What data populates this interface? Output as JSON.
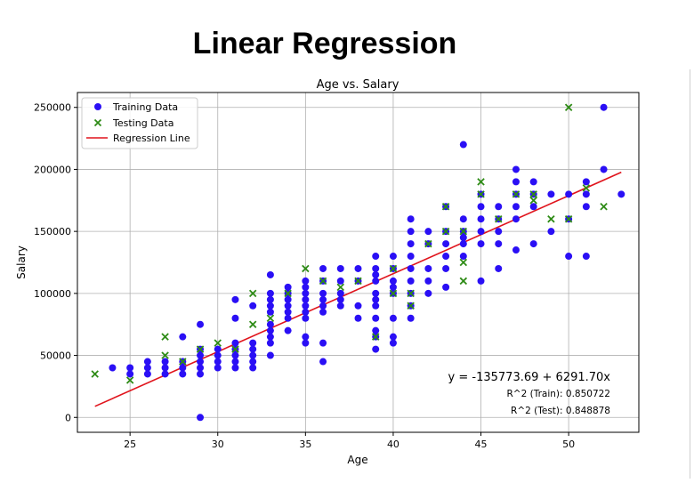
{
  "page": {
    "heading": "Linear Regression"
  },
  "chart_data": {
    "type": "scatter",
    "title": "Age vs. Salary",
    "xlabel": "Age",
    "ylabel": "Salary",
    "xlim": [
      22,
      54
    ],
    "ylim": [
      -12000,
      262000
    ],
    "xticks": [
      25,
      30,
      35,
      40,
      45,
      50
    ],
    "yticks": [
      0,
      50000,
      100000,
      150000,
      200000,
      250000
    ],
    "grid": true,
    "legend_position": "upper-left",
    "legend": [
      {
        "label": "Training Data",
        "marker": "circle",
        "color": "#2a0ff5"
      },
      {
        "label": "Testing Data",
        "marker": "x",
        "color": "#2e8b16"
      },
      {
        "label": "Regression Line",
        "marker": "line",
        "color": "#e0141c"
      }
    ],
    "series": [
      {
        "name": "Training Data",
        "marker": "circle",
        "color": "#2a0ff5",
        "points": [
          [
            24,
            40000
          ],
          [
            25,
            35000
          ],
          [
            25,
            40000
          ],
          [
            26,
            35000
          ],
          [
            26,
            40000
          ],
          [
            26,
            45000
          ],
          [
            27,
            35000
          ],
          [
            27,
            40000
          ],
          [
            27,
            45000
          ],
          [
            28,
            35000
          ],
          [
            28,
            40000
          ],
          [
            28,
            45000
          ],
          [
            28,
            65000
          ],
          [
            29,
            0
          ],
          [
            29,
            35000
          ],
          [
            29,
            40000
          ],
          [
            29,
            45000
          ],
          [
            29,
            50000
          ],
          [
            29,
            55000
          ],
          [
            29,
            75000
          ],
          [
            30,
            40000
          ],
          [
            30,
            45000
          ],
          [
            30,
            50000
          ],
          [
            30,
            55000
          ],
          [
            31,
            40000
          ],
          [
            31,
            45000
          ],
          [
            31,
            50000
          ],
          [
            31,
            55000
          ],
          [
            31,
            60000
          ],
          [
            31,
            80000
          ],
          [
            31,
            95000
          ],
          [
            32,
            40000
          ],
          [
            32,
            45000
          ],
          [
            32,
            50000
          ],
          [
            32,
            55000
          ],
          [
            32,
            60000
          ],
          [
            32,
            90000
          ],
          [
            33,
            50000
          ],
          [
            33,
            60000
          ],
          [
            33,
            65000
          ],
          [
            33,
            70000
          ],
          [
            33,
            75000
          ],
          [
            33,
            85000
          ],
          [
            33,
            90000
          ],
          [
            33,
            95000
          ],
          [
            33,
            100000
          ],
          [
            33,
            115000
          ],
          [
            34,
            70000
          ],
          [
            34,
            80000
          ],
          [
            34,
            85000
          ],
          [
            34,
            90000
          ],
          [
            34,
            95000
          ],
          [
            34,
            100000
          ],
          [
            34,
            105000
          ],
          [
            35,
            60000
          ],
          [
            35,
            65000
          ],
          [
            35,
            80000
          ],
          [
            35,
            85000
          ],
          [
            35,
            90000
          ],
          [
            35,
            95000
          ],
          [
            35,
            100000
          ],
          [
            35,
            105000
          ],
          [
            35,
            110000
          ],
          [
            36,
            45000
          ],
          [
            36,
            60000
          ],
          [
            36,
            85000
          ],
          [
            36,
            90000
          ],
          [
            36,
            95000
          ],
          [
            36,
            100000
          ],
          [
            36,
            110000
          ],
          [
            36,
            120000
          ],
          [
            37,
            90000
          ],
          [
            37,
            95000
          ],
          [
            37,
            100000
          ],
          [
            37,
            110000
          ],
          [
            37,
            120000
          ],
          [
            38,
            80000
          ],
          [
            38,
            90000
          ],
          [
            38,
            110000
          ],
          [
            38,
            120000
          ],
          [
            39,
            55000
          ],
          [
            39,
            65000
          ],
          [
            39,
            70000
          ],
          [
            39,
            80000
          ],
          [
            39,
            90000
          ],
          [
            39,
            95000
          ],
          [
            39,
            100000
          ],
          [
            39,
            110000
          ],
          [
            39,
            115000
          ],
          [
            39,
            120000
          ],
          [
            39,
            130000
          ],
          [
            40,
            60000
          ],
          [
            40,
            65000
          ],
          [
            40,
            80000
          ],
          [
            40,
            100000
          ],
          [
            40,
            105000
          ],
          [
            40,
            110000
          ],
          [
            40,
            120000
          ],
          [
            40,
            130000
          ],
          [
            41,
            80000
          ],
          [
            41,
            90000
          ],
          [
            41,
            100000
          ],
          [
            41,
            110000
          ],
          [
            41,
            120000
          ],
          [
            41,
            130000
          ],
          [
            41,
            140000
          ],
          [
            41,
            150000
          ],
          [
            41,
            160000
          ],
          [
            42,
            100000
          ],
          [
            42,
            110000
          ],
          [
            42,
            120000
          ],
          [
            42,
            140000
          ],
          [
            42,
            150000
          ],
          [
            43,
            105000
          ],
          [
            43,
            120000
          ],
          [
            43,
            130000
          ],
          [
            43,
            140000
          ],
          [
            43,
            150000
          ],
          [
            43,
            170000
          ],
          [
            44,
            130000
          ],
          [
            44,
            140000
          ],
          [
            44,
            145000
          ],
          [
            44,
            150000
          ],
          [
            44,
            160000
          ],
          [
            44,
            220000
          ],
          [
            45,
            110000
          ],
          [
            45,
            140000
          ],
          [
            45,
            150000
          ],
          [
            45,
            160000
          ],
          [
            45,
            170000
          ],
          [
            45,
            180000
          ],
          [
            46,
            120000
          ],
          [
            46,
            140000
          ],
          [
            46,
            150000
          ],
          [
            46,
            160000
          ],
          [
            46,
            170000
          ],
          [
            47,
            135000
          ],
          [
            47,
            160000
          ],
          [
            47,
            170000
          ],
          [
            47,
            180000
          ],
          [
            47,
            190000
          ],
          [
            47,
            200000
          ],
          [
            48,
            140000
          ],
          [
            48,
            170000
          ],
          [
            48,
            180000
          ],
          [
            48,
            190000
          ],
          [
            49,
            150000
          ],
          [
            49,
            180000
          ],
          [
            50,
            130000
          ],
          [
            50,
            160000
          ],
          [
            50,
            180000
          ],
          [
            51,
            130000
          ],
          [
            51,
            170000
          ],
          [
            51,
            180000
          ],
          [
            51,
            190000
          ],
          [
            52,
            200000
          ],
          [
            52,
            250000
          ],
          [
            53,
            180000
          ]
        ]
      },
      {
        "name": "Testing Data",
        "marker": "x",
        "color": "#2e8b16",
        "points": [
          [
            23,
            35000
          ],
          [
            25,
            30000
          ],
          [
            27,
            50000
          ],
          [
            27,
            65000
          ],
          [
            28,
            45000
          ],
          [
            29,
            55000
          ],
          [
            30,
            60000
          ],
          [
            31,
            55000
          ],
          [
            32,
            75000
          ],
          [
            32,
            100000
          ],
          [
            33,
            80000
          ],
          [
            34,
            100000
          ],
          [
            35,
            120000
          ],
          [
            36,
            110000
          ],
          [
            37,
            105000
          ],
          [
            38,
            110000
          ],
          [
            39,
            65000
          ],
          [
            40,
            100000
          ],
          [
            40,
            120000
          ],
          [
            41,
            90000
          ],
          [
            41,
            100000
          ],
          [
            42,
            140000
          ],
          [
            43,
            150000
          ],
          [
            43,
            170000
          ],
          [
            44,
            110000
          ],
          [
            44,
            125000
          ],
          [
            44,
            150000
          ],
          [
            45,
            180000
          ],
          [
            45,
            190000
          ],
          [
            46,
            160000
          ],
          [
            47,
            180000
          ],
          [
            48,
            175000
          ],
          [
            48,
            180000
          ],
          [
            49,
            160000
          ],
          [
            50,
            250000
          ],
          [
            50,
            160000
          ],
          [
            51,
            185000
          ],
          [
            52,
            170000
          ]
        ]
      },
      {
        "name": "Regression Line",
        "type": "line",
        "color": "#e0141c",
        "points": [
          [
            23,
            8936
          ],
          [
            53,
            197687
          ]
        ]
      }
    ],
    "annotations": {
      "equation": "y = -135773.69 + 6291.70x",
      "r2_train": "R^2 (Train): 0.850722",
      "r2_test": "R^2 (Test): 0.848878"
    }
  }
}
